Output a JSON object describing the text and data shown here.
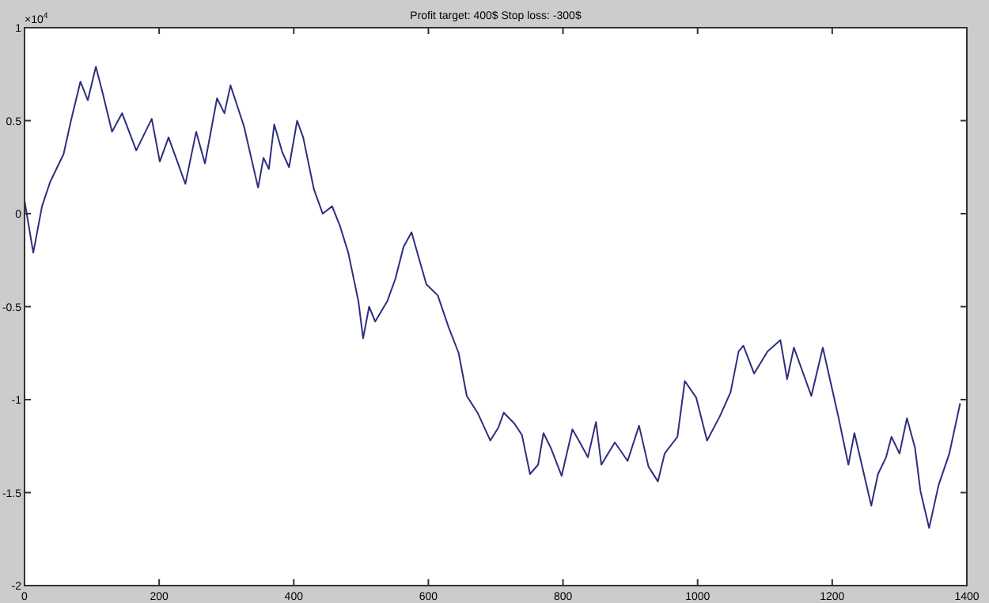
{
  "chart_data": {
    "type": "line",
    "title": "Profit target: 400$ Stop loss: -300$",
    "annotations": [
      "×10$^{4}$"
    ],
    "xlim": [
      0,
      1400
    ],
    "xticks": [
      0,
      200,
      400,
      600,
      800,
      1000,
      1200,
      1400
    ],
    "ylim": [
      -2,
      1
    ],
    "yticks": [
      -2,
      -1.5,
      -1,
      -0.5,
      0,
      0.5,
      1
    ],
    "series": [
      {
        "color": "#2e2e80",
        "x": [
          0,
          13,
          26,
          38,
          58,
          69,
          83,
          94,
          106,
          116,
          130,
          145,
          166,
          189,
          201,
          214,
          239,
          255,
          268,
          286,
          297,
          306,
          326,
          347,
          355,
          363,
          371,
          383,
          393,
          405,
          414,
          430,
          443,
          457,
          469,
          481,
          496,
          503,
          512,
          521,
          539,
          551,
          563,
          575,
          586,
          597,
          614,
          630,
          645,
          657,
          673,
          692,
          704,
          712,
          728,
          739,
          751,
          763,
          771,
          782,
          798,
          814,
          825,
          837,
          849,
          857,
          877,
          896,
          913,
          927,
          941,
          951,
          970,
          981,
          998,
          1014,
          1033,
          1049,
          1061,
          1068,
          1084,
          1104,
          1123,
          1133,
          1143,
          1169,
          1186,
          1209,
          1224,
          1233,
          1258,
          1268,
          1280,
          1288,
          1300,
          1311,
          1323,
          1331,
          1344,
          1358,
          1374,
          1390
        ],
        "values": [
          0.07,
          -0.21,
          0.04,
          0.17,
          0.32,
          0.5,
          0.71,
          0.61,
          0.79,
          0.65,
          0.44,
          0.54,
          0.34,
          0.51,
          0.28,
          0.41,
          0.16,
          0.44,
          0.27,
          0.62,
          0.54,
          0.69,
          0.47,
          0.14,
          0.3,
          0.24,
          0.48,
          0.33,
          0.25,
          0.5,
          0.41,
          0.13,
          0,
          0.04,
          -0.07,
          -0.21,
          -0.47,
          -0.67,
          -0.5,
          -0.58,
          -0.47,
          -0.35,
          -0.18,
          -0.1,
          -0.24,
          -0.38,
          -0.44,
          -0.61,
          -0.75,
          -0.98,
          -1.07,
          -1.22,
          -1.15,
          -1.07,
          -1.13,
          -1.19,
          -1.4,
          -1.35,
          -1.18,
          -1.26,
          -1.41,
          -1.16,
          -1.23,
          -1.31,
          -1.12,
          -1.35,
          -1.23,
          -1.33,
          -1.14,
          -1.36,
          -1.44,
          -1.29,
          -1.2,
          -0.9,
          -0.99,
          -1.22,
          -1.09,
          -0.96,
          -0.74,
          -0.71,
          -0.86,
          -0.74,
          -0.68,
          -0.89,
          -0.72,
          -0.98,
          -0.72,
          -1.09,
          -1.35,
          -1.18,
          -1.57,
          -1.4,
          -1.31,
          -1.2,
          -1.29,
          -1.1,
          -1.26,
          -1.49,
          -1.69,
          -1.46,
          -1.29,
          -1.02
        ]
      }
    ]
  }
}
